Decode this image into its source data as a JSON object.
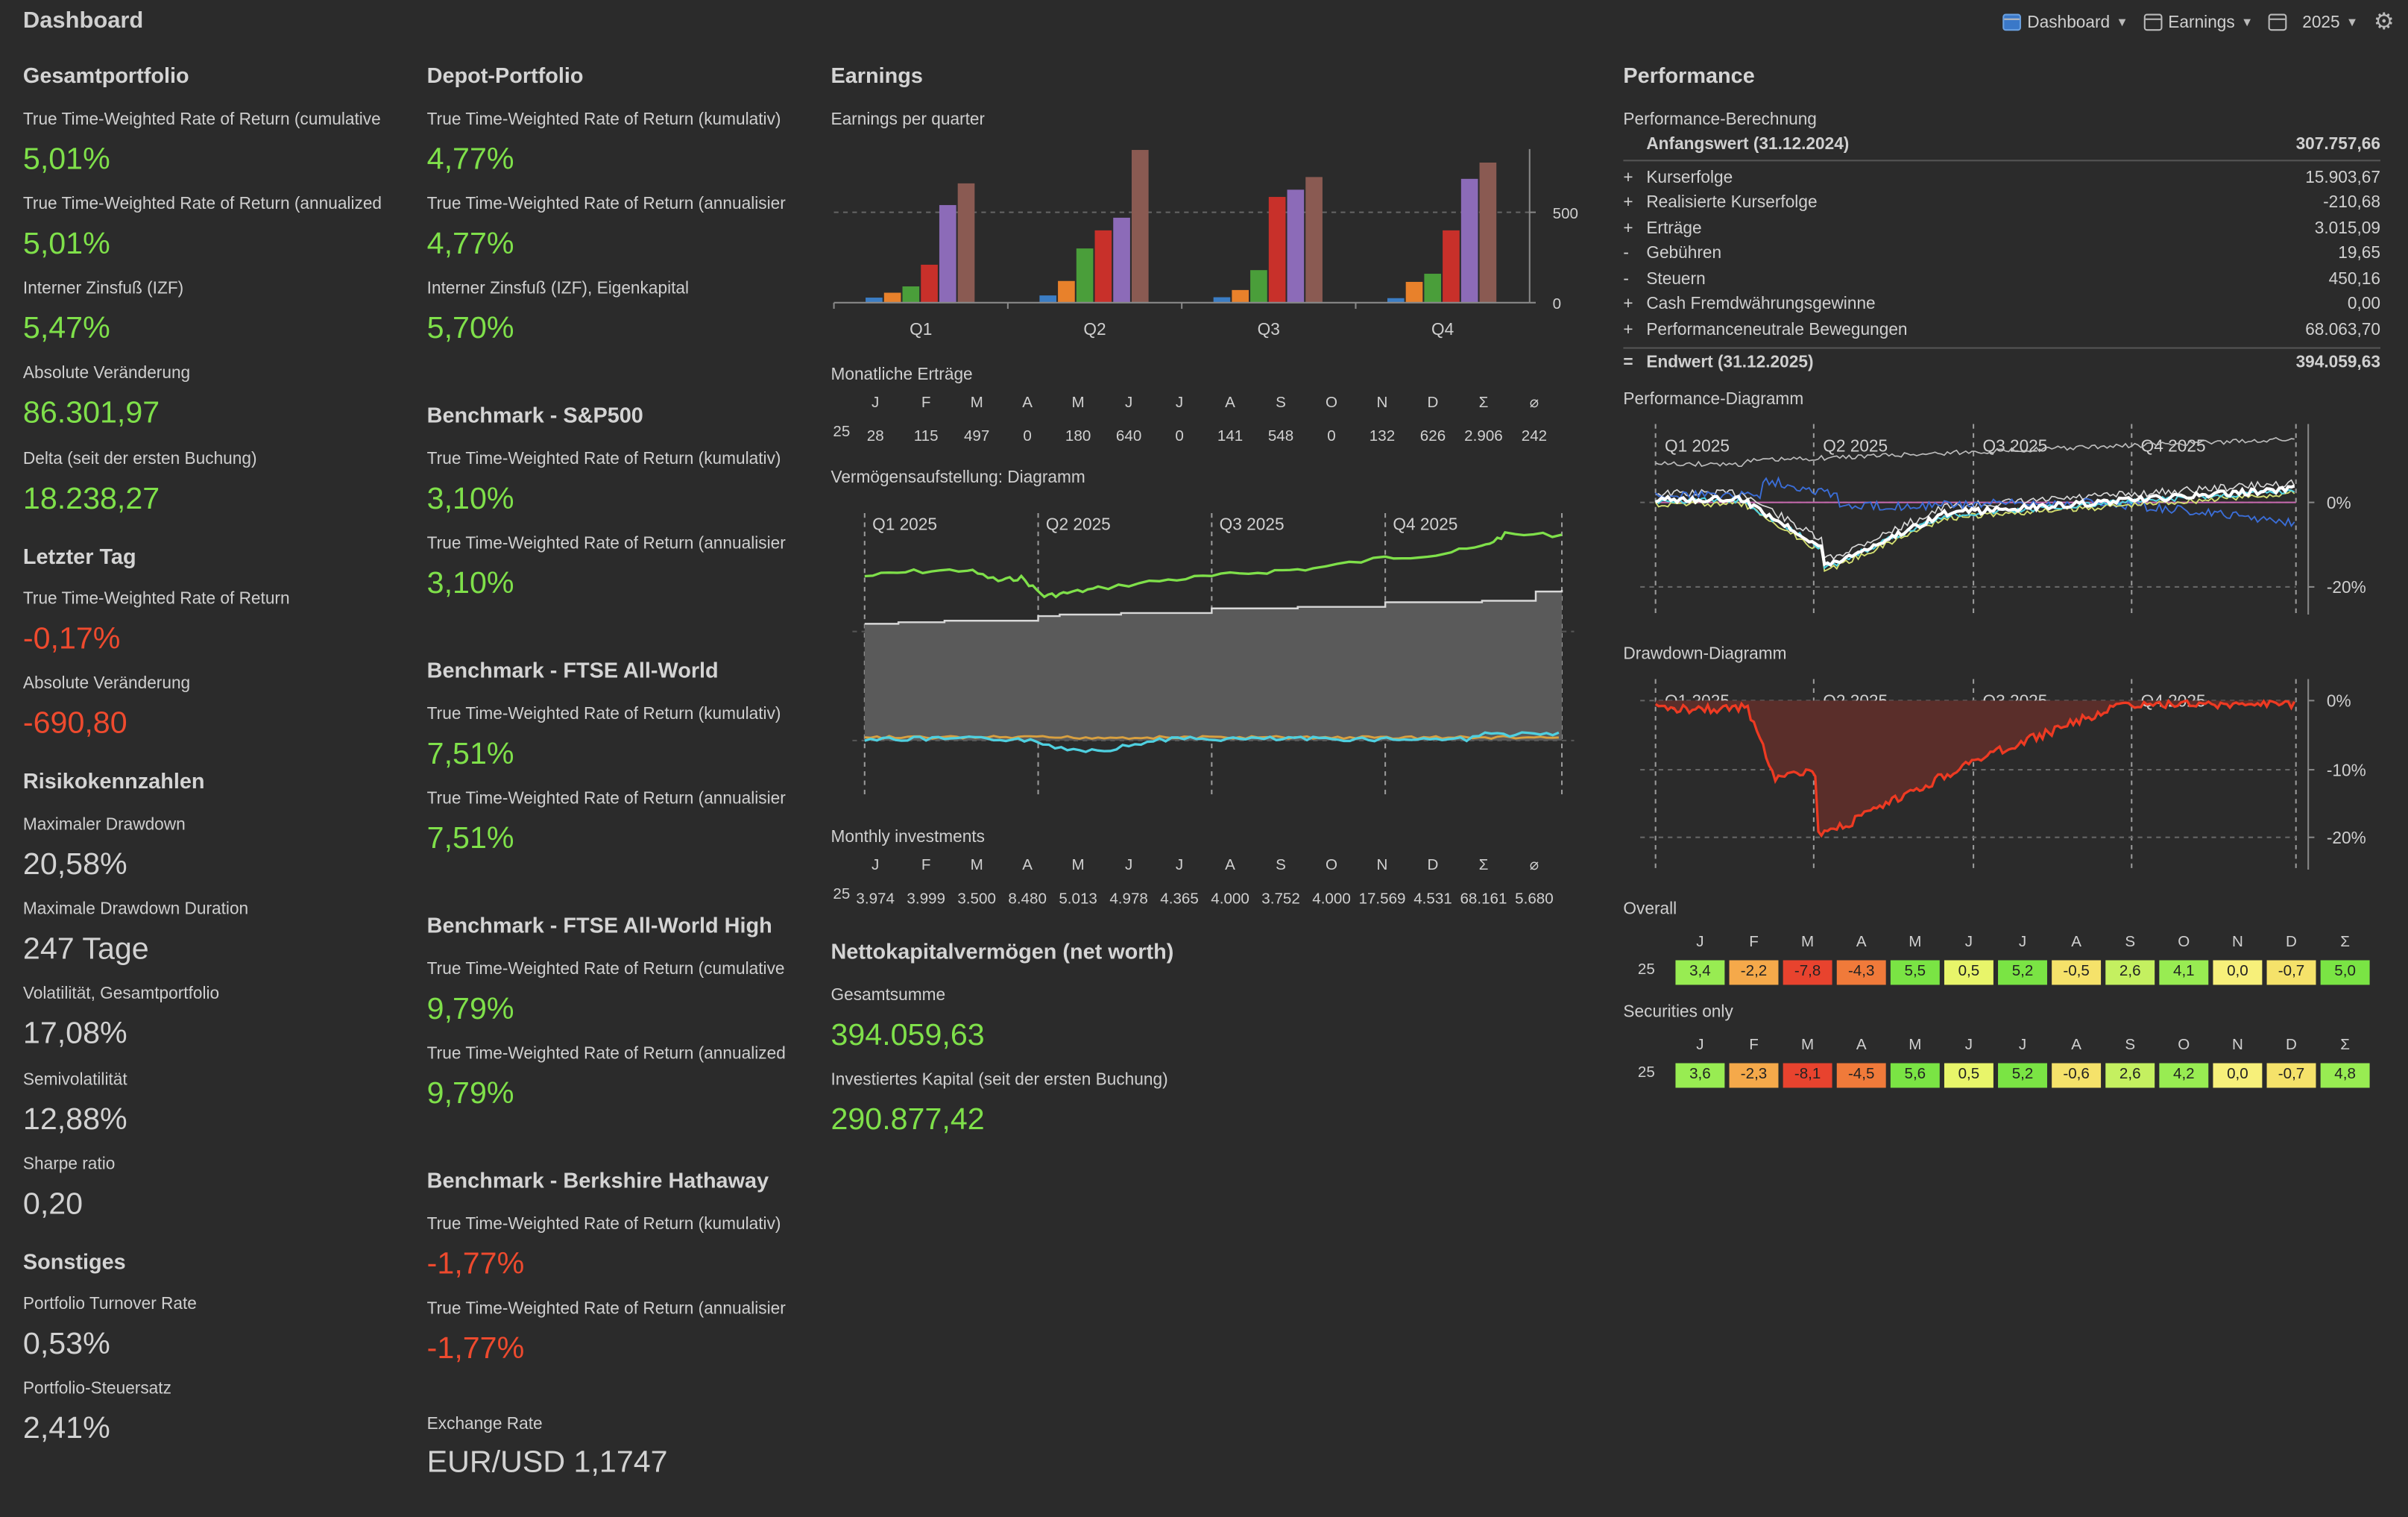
{
  "app": {
    "title": "Dashboard"
  },
  "toolbar": {
    "dashboard_label": "Dashboard",
    "earnings_label": "Earnings",
    "year_label": "2025"
  },
  "col1": {
    "gesamt_title": "Gesamtportfolio",
    "ttwror_cum_label": "True Time-Weighted Rate of Return (cumulative",
    "ttwror_cum_value": "5,01%",
    "ttwror_ann_label": "True Time-Weighted Rate of Return (annualized",
    "ttwror_ann_value": "5,01%",
    "izf_label": "Interner Zinsfuß (IZF)",
    "izf_value": "5,47%",
    "abs_label": "Absolute Veränderung",
    "abs_value": "86.301,97",
    "delta_label": "Delta (seit der ersten Buchung)",
    "delta_value": "18.238,27",
    "letzter_title": "Letzter Tag",
    "lt_ttwror_label": "True Time-Weighted Rate of Return",
    "lt_ttwror_value": "-0,17%",
    "lt_abs_label": "Absolute Veränderung",
    "lt_abs_value": "-690,80",
    "risk_title": "Risikokennzahlen",
    "maxdd_label": "Maximaler Drawdown",
    "maxdd_value": "20,58%",
    "maxddd_label": "Maximale Drawdown Duration",
    "maxddd_value": "247 Tage",
    "vol_label": "Volatilität, Gesamtportfolio",
    "vol_value": "17,08%",
    "semivol_label": "Semivolatilität",
    "semivol_value": "12,88%",
    "sharpe_label": "Sharpe ratio",
    "sharpe_value": "0,20",
    "sonst_title": "Sonstiges",
    "turnover_label": "Portfolio Turnover Rate",
    "turnover_value": "0,53%",
    "steuer_label": "Portfolio-Steuersatz",
    "steuer_value": "2,41%"
  },
  "col2": {
    "depot_title": "Depot-Portfolio",
    "depot_cum_label": "True Time-Weighted Rate of Return (kumulativ)",
    "depot_cum_value": "4,77%",
    "depot_ann_label": "True Time-Weighted Rate of Return (annualisier",
    "depot_ann_value": "4,77%",
    "depot_izf_label": "Interner Zinsfuß (IZF), Eigenkapital",
    "depot_izf_value": "5,70%",
    "sp_title": "Benchmark - S&P500",
    "sp_cum_label": "True Time-Weighted Rate of Return (kumulativ)",
    "sp_cum_value": "3,10%",
    "sp_ann_label": "True Time-Weighted Rate of Return (annualisier",
    "sp_ann_value": "3,10%",
    "ftse_title": "Benchmark - FTSE All-World",
    "ftse_cum_label": "True Time-Weighted Rate of Return (kumulativ)",
    "ftse_cum_value": "7,51%",
    "ftse_ann_label": "True Time-Weighted Rate of Return (annualisier",
    "ftse_ann_value": "7,51%",
    "ftseh_title": "Benchmark - FTSE All-World High",
    "ftseh_cum_label": "True Time-Weighted Rate of Return (cumulative",
    "ftseh_cum_value": "9,79%",
    "ftseh_ann_label": "True Time-Weighted Rate of Return (annualized",
    "ftseh_ann_value": "9,79%",
    "brk_title": "Benchmark - Berkshire Hathaway",
    "brk_cum_label": "True Time-Weighted Rate of Return (kumulativ)",
    "brk_cum_value": "-1,77%",
    "brk_ann_label": "True Time-Weighted Rate of Return (annualisier",
    "brk_ann_value": "-1,77%",
    "fx_label": "Exchange Rate",
    "fx_value": "EUR/USD 1,1747"
  },
  "col3": {
    "earnings_title": "Earnings",
    "epq_label": "Earnings per quarter",
    "monthly_label": "Monatliche Erträge",
    "verm_label": "Vermögensaufstellung: Diagramm",
    "invest_label": "Monthly investments",
    "networth_title": "Nettokapitalvermögen (net worth)",
    "gesamt_label": "Gesamtsumme",
    "gesamt_value": "394.059,63",
    "invkap_label": "Investiertes Kapital (seit der ersten Buchung)",
    "invkap_value": "290.877,42",
    "month_headers": [
      "J",
      "F",
      "M",
      "A",
      "M",
      "J",
      "J",
      "A",
      "S",
      "O",
      "N",
      "D",
      "Σ",
      "⌀"
    ],
    "year_label": "25",
    "monthly_earnings": [
      "28",
      "115",
      "497",
      "0",
      "180",
      "640",
      "0",
      "141",
      "548",
      "0",
      "132",
      "626",
      "2.906",
      "242"
    ],
    "monthly_investments": [
      "3.974",
      "3.999",
      "3.500",
      "8.480",
      "5.013",
      "4.978",
      "4.365",
      "4.000",
      "3.752",
      "4.000",
      "17.569",
      "4.531",
      "68.161",
      "5.680"
    ],
    "verm_quarters": [
      "Q1 2025",
      "Q2 2025",
      "Q3 2025",
      "Q4 2025"
    ]
  },
  "col4": {
    "perf_title": "Performance",
    "calc_label": "Performance-Berechnung",
    "rows": [
      {
        "sign": "",
        "name": "Anfangswert (31.12.2024)",
        "amount": "307.757,66",
        "bold": true
      },
      {
        "sign": "+",
        "name": "Kurserfolge",
        "amount": "15.903,67"
      },
      {
        "sign": "+",
        "name": "Realisierte Kurserfolge",
        "amount": "-210,68"
      },
      {
        "sign": "+",
        "name": "Erträge",
        "amount": "3.015,09"
      },
      {
        "sign": "-",
        "name": "Gebühren",
        "amount": "19,65"
      },
      {
        "sign": "-",
        "name": "Steuern",
        "amount": "450,16"
      },
      {
        "sign": "+",
        "name": "Cash Fremdwährungsgewinne",
        "amount": "0,00"
      },
      {
        "sign": "+",
        "name": "Performanceneutrale Bewegungen",
        "amount": "68.063,70"
      },
      {
        "sign": "=",
        "name": "Endwert (31.12.2025)",
        "amount": "394.059,63",
        "bold": true
      }
    ],
    "perf_diag_label": "Performance-Diagramm",
    "perf_quarters": [
      "Q1 2025",
      "Q2 2025",
      "Q3 2025",
      "Q4 2025"
    ],
    "perf_yticks": [
      "0%",
      "-20%"
    ],
    "dd_label": "Drawdown-Diagramm",
    "dd_yticks": [
      "0%",
      "-10%",
      "-20%"
    ],
    "overall_label": "Overall",
    "securities_label": "Securities only",
    "heat_headers": [
      "J",
      "F",
      "M",
      "A",
      "M",
      "J",
      "J",
      "A",
      "S",
      "O",
      "N",
      "D",
      "Σ"
    ],
    "year_label": "25",
    "overall_values": [
      "3,4",
      "-2,2",
      "-7,8",
      "-4,3",
      "5,5",
      "0,5",
      "5,2",
      "-0,5",
      "2,6",
      "4,1",
      "0,0",
      "-0,7",
      "5,0"
    ],
    "securities_values": [
      "3,6",
      "-2,3",
      "-8,1",
      "-4,5",
      "5,6",
      "0,5",
      "5,2",
      "-0,6",
      "2,6",
      "4,2",
      "0,0",
      "-0,7",
      "4,8"
    ]
  },
  "chart_data": [
    {
      "type": "bar",
      "title": "Earnings per quarter",
      "categories": [
        "Q1",
        "Q2",
        "Q3",
        "Q4"
      ],
      "yticks": [
        "0",
        "500"
      ],
      "ylim": [
        0,
        850
      ],
      "series_colors": [
        "#3b7dc4",
        "#e8812b",
        "#4a9e3a",
        "#c8302a",
        "#8c6bb8",
        "#8a5a52"
      ],
      "series": [
        {
          "values": [
            28,
            40,
            30,
            25
          ]
        },
        {
          "values": [
            55,
            120,
            70,
            115
          ]
        },
        {
          "values": [
            90,
            300,
            180,
            160
          ]
        },
        {
          "values": [
            210,
            400,
            585,
            400
          ]
        },
        {
          "values": [
            540,
            470,
            625,
            685
          ]
        },
        {
          "values": [
            660,
            845,
            695,
            775
          ]
        }
      ]
    },
    {
      "type": "area",
      "title": "Vermögensaufstellung: Diagramm",
      "x": [
        "Q1 2025",
        "Q2 2025",
        "Q3 2025",
        "Q4 2025"
      ],
      "series_colors": [
        "#7fe04a",
        "#bdbdbd",
        "#4fd0e0",
        "#d8a040"
      ]
    },
    {
      "type": "line",
      "title": "Performance-Diagramm",
      "x": [
        "Q1 2025",
        "Q2 2025",
        "Q3 2025",
        "Q4 2025"
      ],
      "yticks": [
        "0%",
        "-20%"
      ]
    },
    {
      "type": "area",
      "title": "Drawdown-Diagramm",
      "x": [
        "Q1 2025",
        "Q2 2025",
        "Q3 2025",
        "Q4 2025"
      ],
      "yticks": [
        "0%",
        "-10%",
        "-20%"
      ]
    }
  ]
}
